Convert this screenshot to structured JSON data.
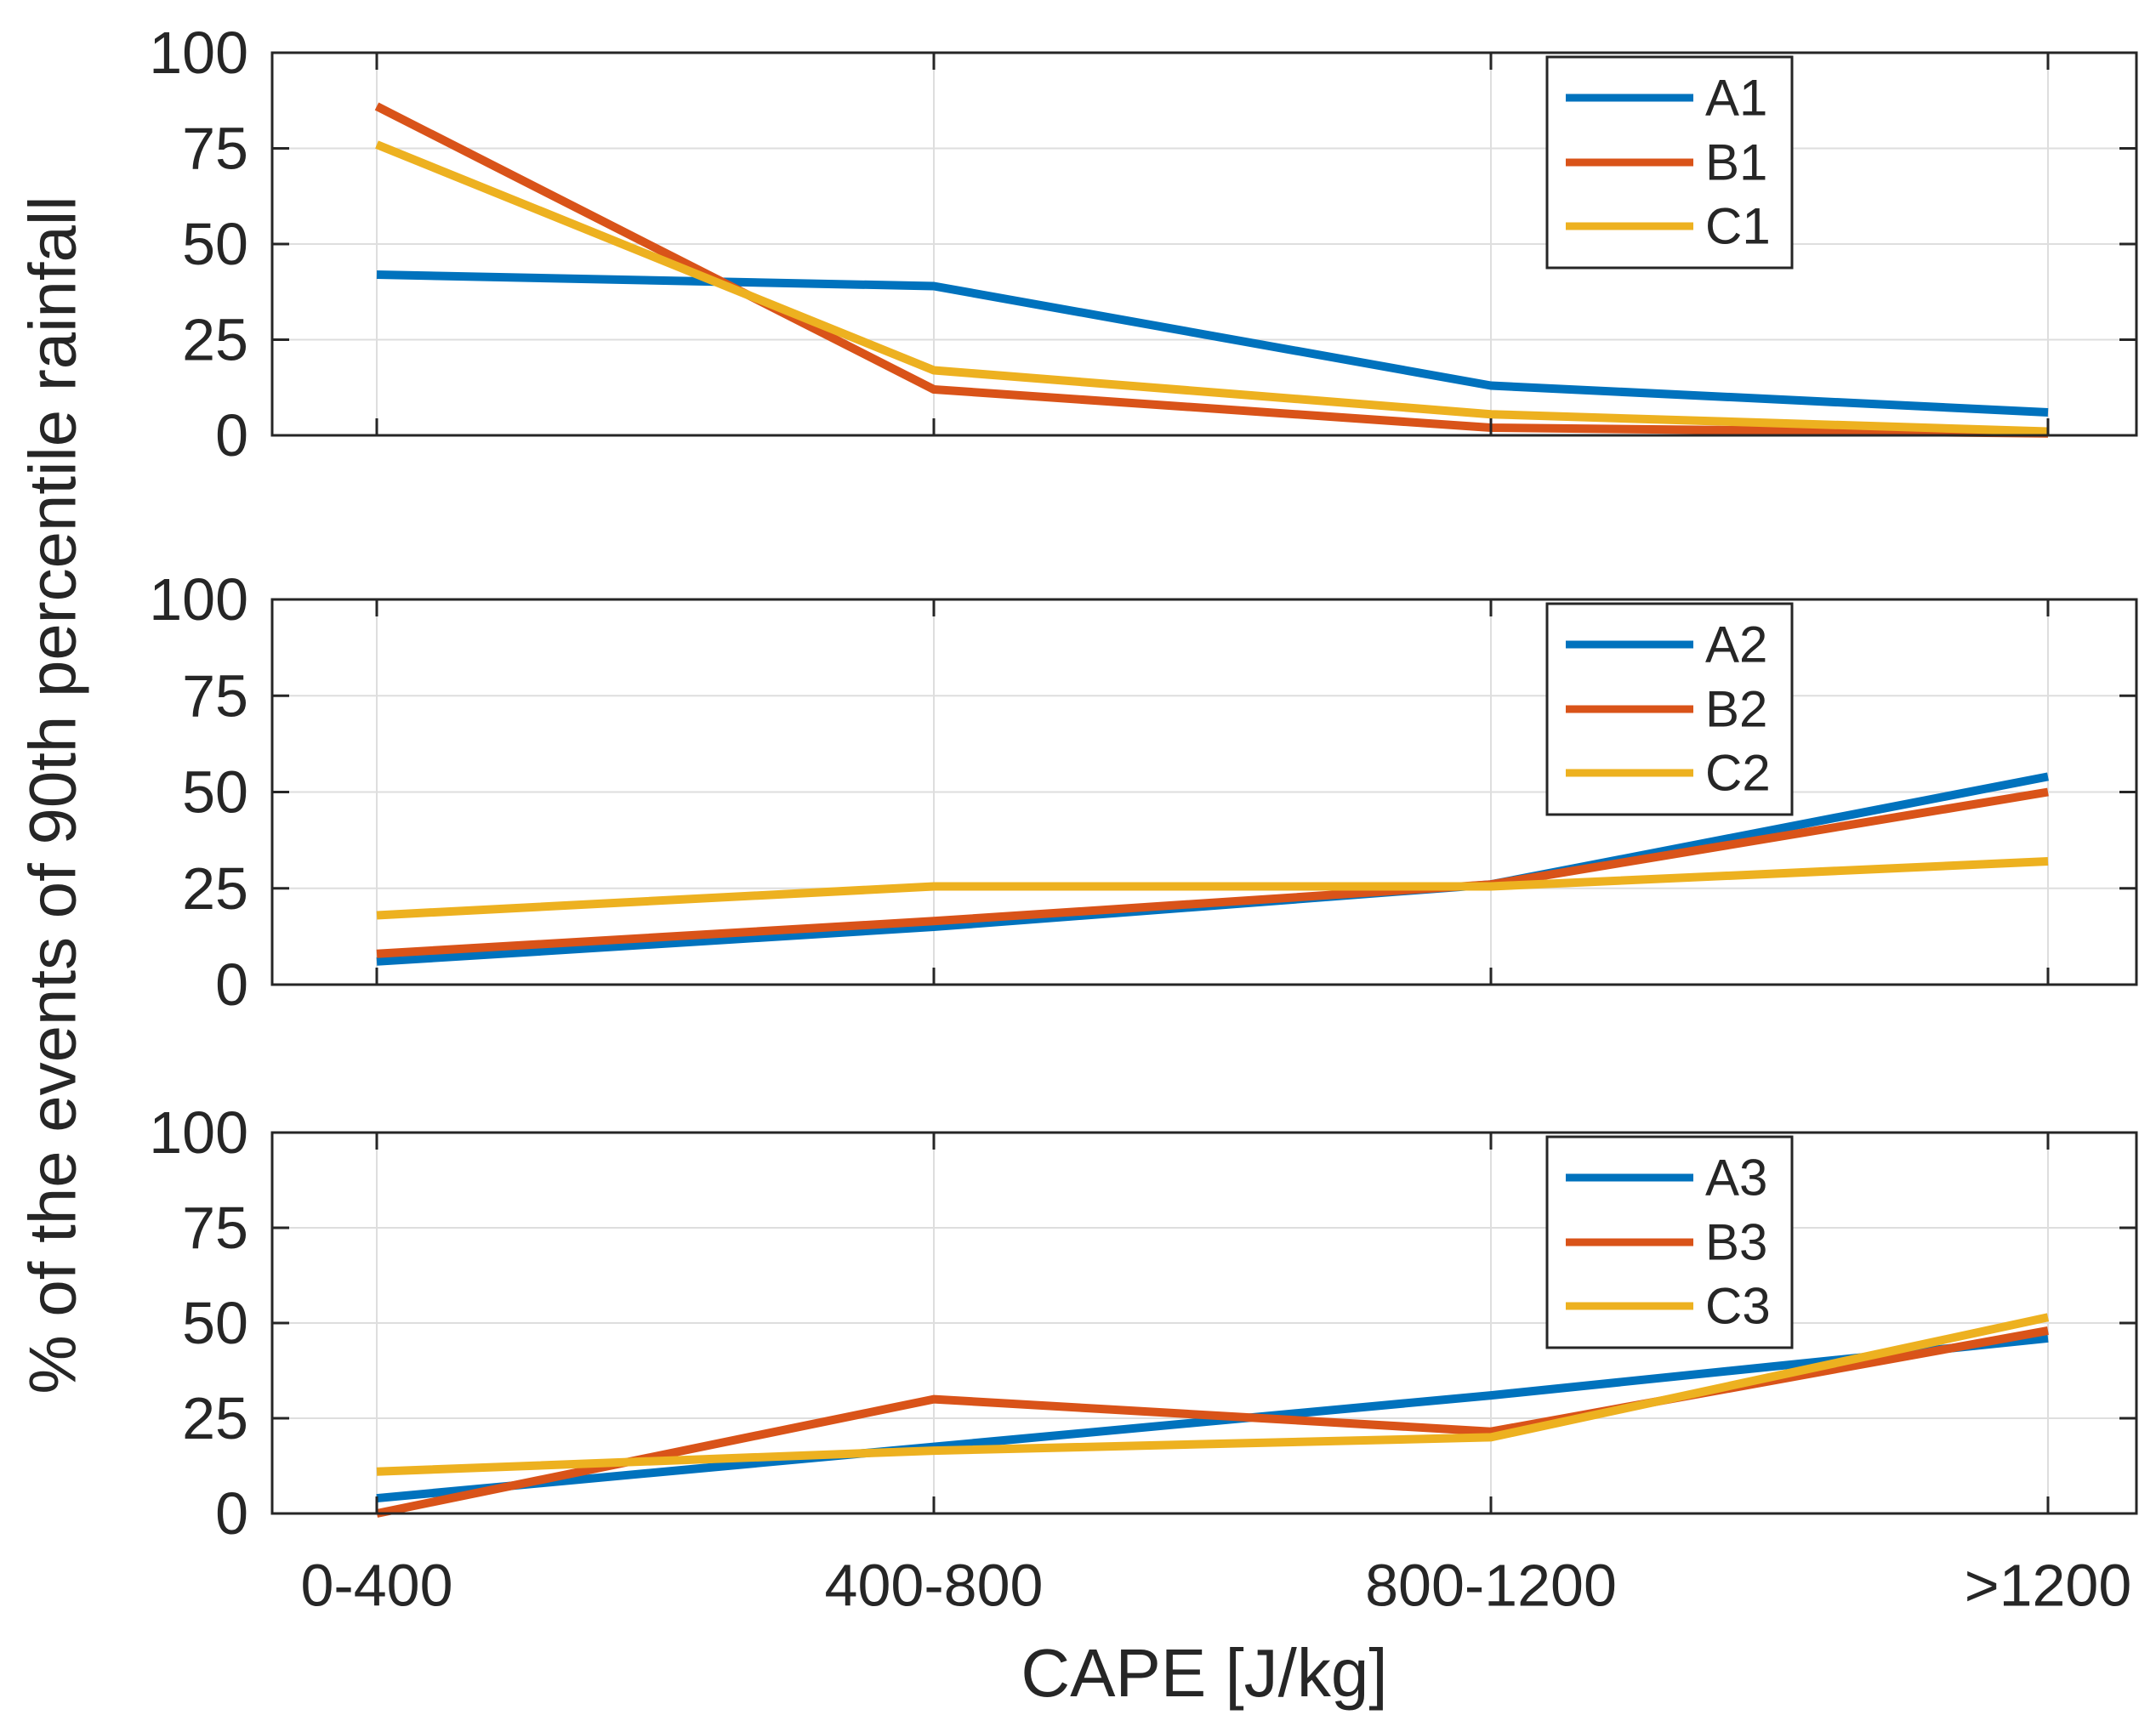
{
  "figure": {
    "ylabel": "% of the events of 90th percentile rainfall",
    "xlabel": "CAPE [J/kg]",
    "background": "#FFFFFF",
    "text_color": "#262626",
    "grid_color": "#DEDEDE",
    "axis_color": "#262626"
  },
  "chart_data": [
    {
      "type": "line",
      "panel": "top",
      "categories": [
        "0-400",
        "400-800",
        "800-1200",
        ">1200"
      ],
      "xlabel": "CAPE [J/kg]",
      "ylabel": "% of the events of 90th percentile rainfall",
      "ylim": [
        0,
        100
      ],
      "yticks": [
        0,
        25,
        50,
        75,
        100
      ],
      "grid": true,
      "legend_position": "top-right",
      "series": [
        {
          "name": "A1",
          "color": "#0072BD",
          "values": [
            42,
            39,
            13,
            6
          ]
        },
        {
          "name": "B1",
          "color": "#D95319",
          "values": [
            86,
            12,
            2,
            0.5
          ]
        },
        {
          "name": "C1",
          "color": "#EDB120",
          "values": [
            76,
            17,
            5.5,
            1
          ]
        }
      ]
    },
    {
      "type": "line",
      "panel": "middle",
      "categories": [
        "0-400",
        "400-800",
        "800-1200",
        ">1200"
      ],
      "xlabel": "CAPE [J/kg]",
      "ylabel": "% of the events of 90th percentile rainfall",
      "ylim": [
        0,
        100
      ],
      "yticks": [
        0,
        25,
        50,
        75,
        100
      ],
      "grid": true,
      "legend_position": "top-right",
      "series": [
        {
          "name": "A2",
          "color": "#0072BD",
          "values": [
            6,
            15,
            26,
            54
          ]
        },
        {
          "name": "B2",
          "color": "#D95319",
          "values": [
            8,
            16.5,
            26,
            50
          ]
        },
        {
          "name": "C2",
          "color": "#EDB120",
          "values": [
            18,
            25.5,
            25.5,
            32
          ]
        }
      ]
    },
    {
      "type": "line",
      "panel": "bottom",
      "categories": [
        "0-400",
        "400-800",
        "800-1200",
        ">1200"
      ],
      "xlabel": "CAPE [J/kg]",
      "ylabel": "% of the events of 90th percentile rainfall",
      "ylim": [
        0,
        100
      ],
      "yticks": [
        0,
        25,
        50,
        75,
        100
      ],
      "grid": true,
      "legend_position": "top-right",
      "series": [
        {
          "name": "A3",
          "color": "#0072BD",
          "values": [
            4,
            17.5,
            31,
            46
          ]
        },
        {
          "name": "B3",
          "color": "#D95319",
          "values": [
            0,
            30,
            21.5,
            48
          ]
        },
        {
          "name": "C3",
          "color": "#EDB120",
          "values": [
            11,
            16.5,
            20,
            51.5
          ]
        }
      ]
    }
  ]
}
